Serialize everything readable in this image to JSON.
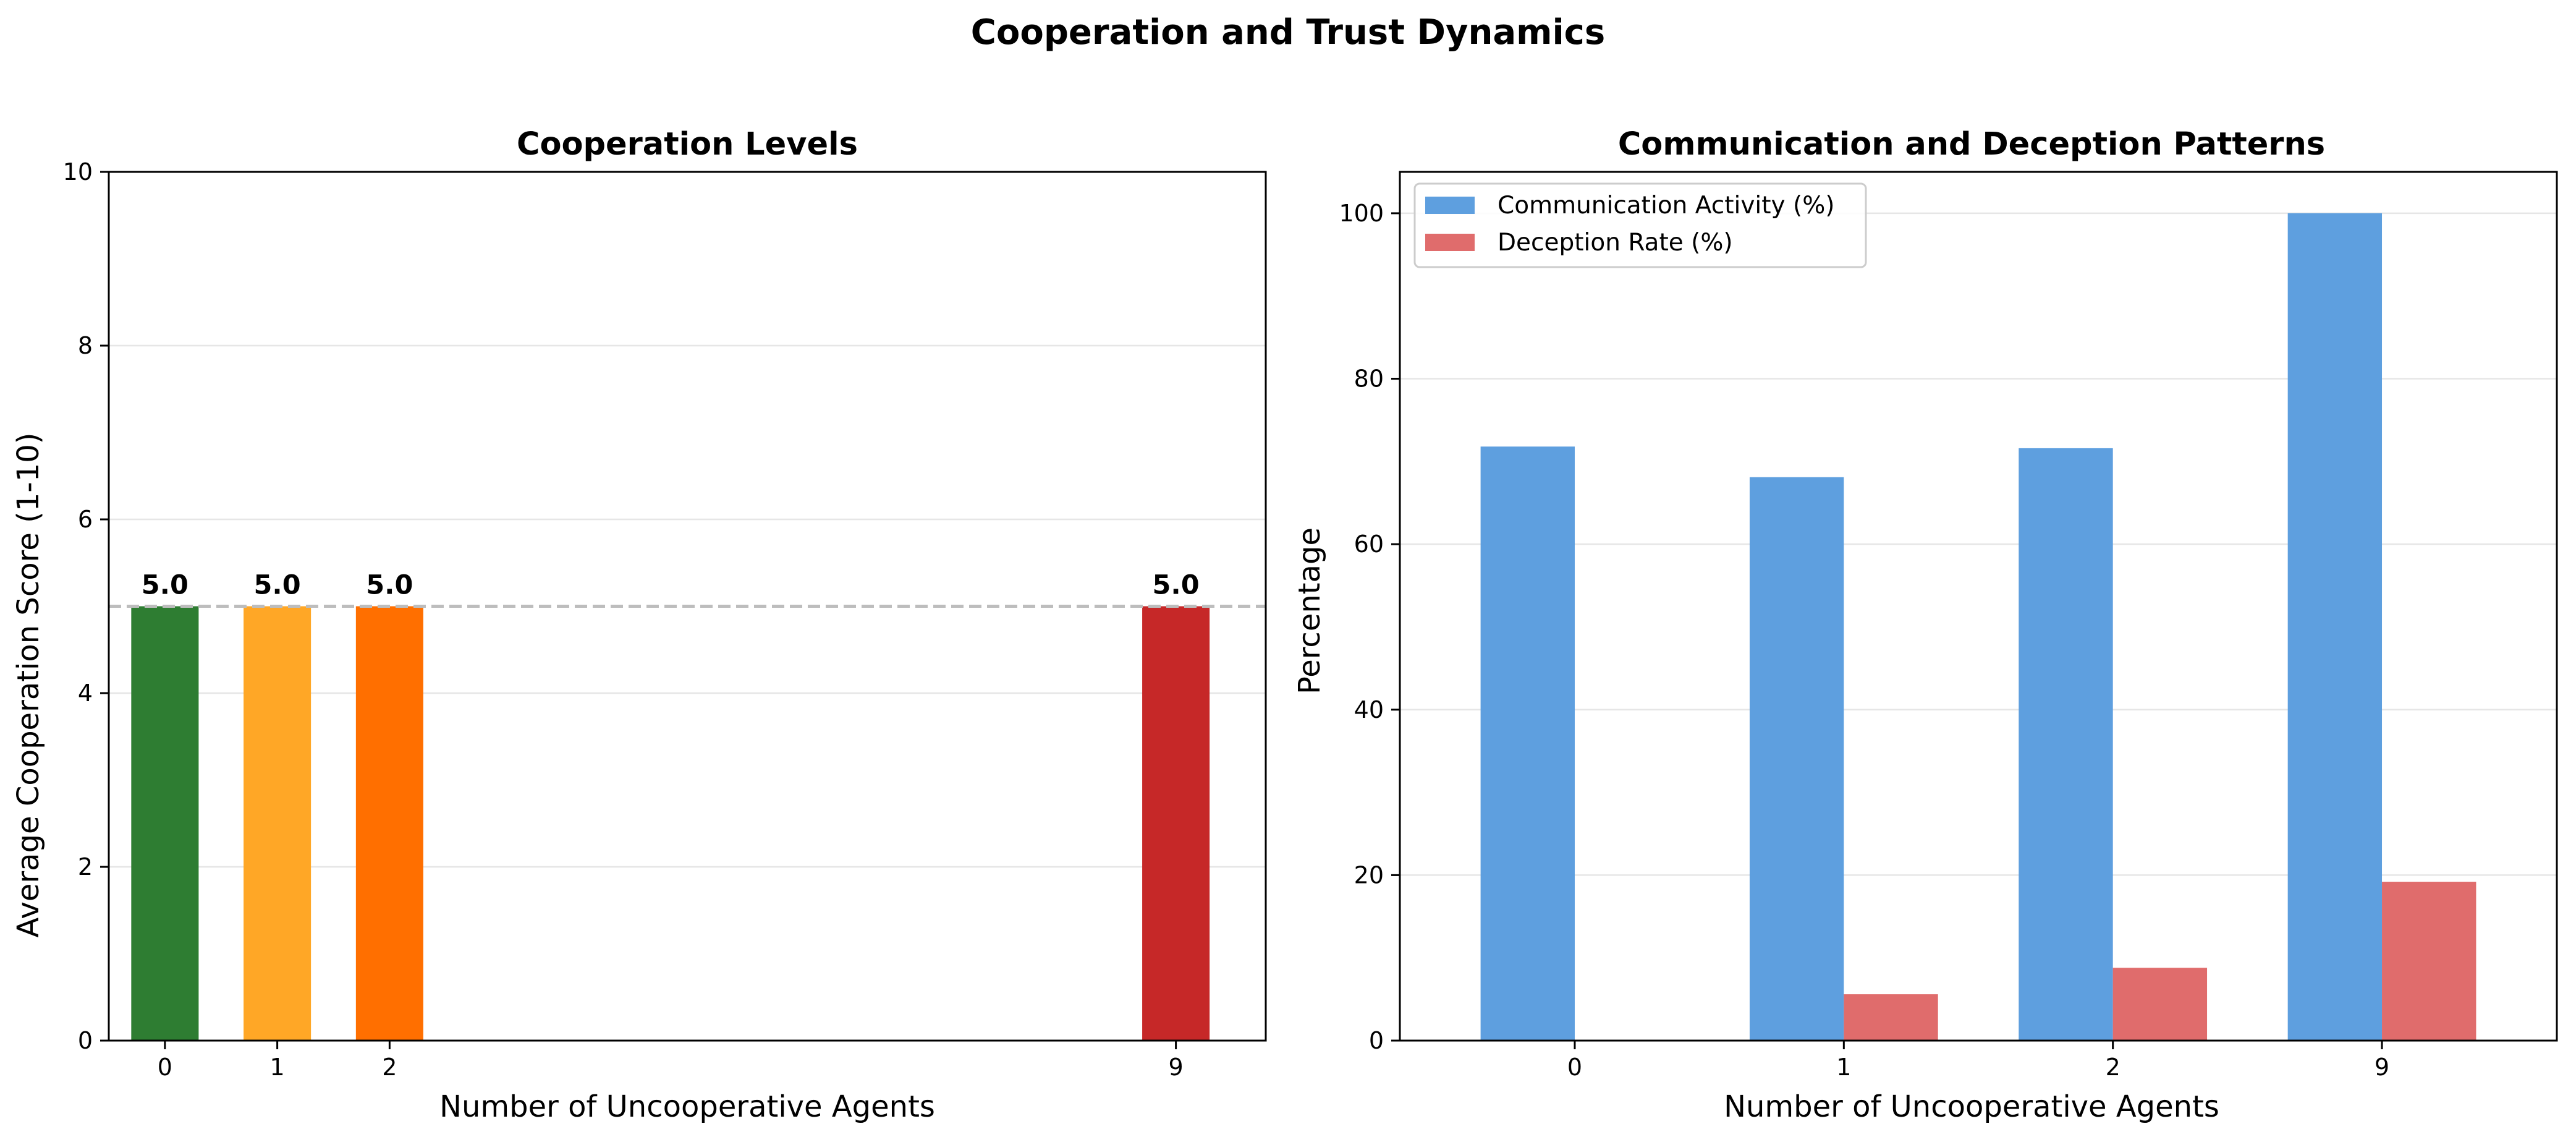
{
  "figure": {
    "title": "Cooperation and Trust Dynamics"
  },
  "chart_data": [
    {
      "type": "bar",
      "title": "Cooperation Levels",
      "xlabel": "Number of Uncooperative Agents",
      "ylabel": "Average Cooperation Score (1-10)",
      "x": [
        0,
        1,
        2,
        9
      ],
      "x_tick_labels": [
        "0",
        "1",
        "2",
        "9"
      ],
      "values": [
        5.0,
        5.0,
        5.0,
        5.0
      ],
      "value_labels": [
        "5.0",
        "5.0",
        "5.0",
        "5.0"
      ],
      "bar_colors": [
        "#2e7d32",
        "#ffa726",
        "#ff6f00",
        "#c62828"
      ],
      "xlim": [
        -0.5,
        9.8
      ],
      "ylim": [
        0,
        10
      ],
      "y_ticks": [
        0,
        2,
        4,
        6,
        8,
        10
      ],
      "reference_line": {
        "y": 5,
        "color": "#bdbdbd",
        "style": "dashed"
      },
      "grid": "horizontal"
    },
    {
      "type": "bar",
      "title": "Communication and Deception Patterns",
      "xlabel": "Number of Uncooperative Agents",
      "ylabel": "Percentage",
      "categories": [
        "0",
        "1",
        "2",
        "9"
      ],
      "series": [
        {
          "name": "Communication Activity (%)",
          "color": "#5e9fdf",
          "values": [
            71.8,
            68.1,
            71.6,
            100.0
          ]
        },
        {
          "name": "Deception Rate (%)",
          "color": "#e06c6c",
          "values": [
            0.0,
            5.6,
            8.8,
            19.2
          ]
        }
      ],
      "ylim": [
        0,
        105
      ],
      "y_ticks": [
        0,
        20,
        40,
        60,
        80,
        100
      ],
      "legend": "top-left",
      "grid": "horizontal"
    }
  ]
}
